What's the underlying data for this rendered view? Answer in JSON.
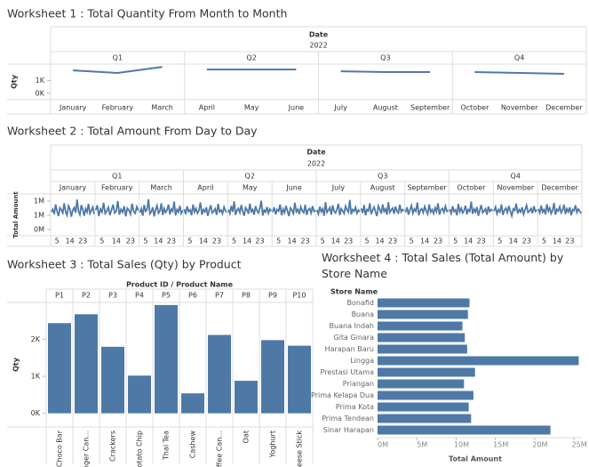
{
  "chart_data": [
    {
      "type": "line",
      "title": "Worksheet 1 : Total Quantity From Month to Month",
      "header": "Date",
      "year": "2022",
      "quarters": [
        "Q1",
        "Q2",
        "Q3",
        "Q4"
      ],
      "categories": [
        "January",
        "February",
        "March",
        "April",
        "May",
        "June",
        "July",
        "August",
        "September",
        "October",
        "November",
        "December"
      ],
      "values": [
        1800,
        1600,
        2070,
        1870,
        1870,
        1870,
        1730,
        1670,
        1670,
        1670,
        1600,
        1530
      ],
      "ylabel": "Qty",
      "ylim": [
        -500,
        2300
      ],
      "yticks": [
        {
          "value": 0,
          "label": "0K"
        },
        {
          "value": 1000,
          "label": "1K"
        }
      ],
      "color": "#4e79a7"
    },
    {
      "type": "timeseries",
      "title": "Worksheet 2 : Total Amount From Day to Day",
      "header": "Date",
      "year": "2022",
      "quarters": [
        "Q1",
        "Q2",
        "Q3",
        "Q4"
      ],
      "months": [
        {
          "name": "January",
          "values": [
            620000,
            710000,
            540000,
            880000,
            650000,
            470000,
            760000,
            690000,
            580000,
            920000,
            610000,
            500000,
            830000,
            720000,
            450000,
            680000,
            770000,
            590000,
            1050000,
            640000,
            520000,
            860000,
            700000,
            480000,
            730000,
            610000,
            900000,
            560000,
            670000,
            790000,
            530000
          ]
        },
        {
          "name": "February",
          "values": [
            680000,
            850000,
            470000,
            720000,
            610000,
            940000,
            560000,
            650000,
            780000,
            500000,
            690000,
            870000,
            580000,
            640000,
            1000000,
            520000,
            710000,
            600000,
            820000,
            460000,
            750000,
            680000,
            540000,
            910000,
            630000,
            570000,
            800000,
            660000
          ]
        },
        {
          "name": "March",
          "values": [
            590000,
            730000,
            480000,
            860000,
            640000,
            700000,
            1060000,
            550000,
            620000,
            780000,
            460000,
            690000,
            840000,
            570000,
            650000,
            920000,
            510000,
            740000,
            600000,
            680000,
            880000,
            530000,
            720000,
            640000,
            980000,
            490000,
            700000,
            610000,
            830000,
            560000,
            670000
          ]
        },
        {
          "name": "April",
          "values": [
            720000,
            540000,
            810000,
            630000,
            690000,
            500000,
            880000,
            610000,
            740000,
            570000,
            660000,
            950000,
            520000,
            700000,
            620000,
            780000,
            480000,
            690000,
            850000,
            580000,
            640000,
            730000,
            510000,
            900000,
            620000,
            680000,
            560000,
            790000,
            650000,
            600000
          ]
        },
        {
          "name": "May",
          "values": [
            700000,
            560000,
            830000,
            620000,
            990000,
            510000,
            680000,
            740000,
            590000,
            860000,
            640000,
            480000,
            770000,
            690000,
            550000,
            910000,
            630000,
            700000,
            520000,
            820000,
            660000,
            580000,
            750000,
            1010000,
            490000,
            680000,
            610000,
            790000,
            570000,
            720000,
            640000
          ]
        },
        {
          "name": "June",
          "values": [
            610000,
            780000,
            530000,
            700000,
            650000,
            880000,
            500000,
            720000,
            590000,
            830000,
            640000,
            470000,
            760000,
            680000,
            560000,
            940000,
            620000,
            710000,
            540000,
            800000,
            650000,
            590000,
            870000,
            510000,
            690000,
            740000,
            580000,
            820000,
            630000,
            670000
          ]
        },
        {
          "name": "July",
          "values": [
            690000,
            540000,
            800000,
            620000,
            720000,
            480000,
            960000,
            600000,
            680000,
            770000,
            520000,
            850000,
            640000,
            580000,
            710000,
            900000,
            500000,
            730000,
            650000,
            560000,
            820000,
            690000,
            610000,
            1040000,
            530000,
            700000,
            640000,
            780000,
            570000,
            680000,
            620000
          ]
        },
        {
          "name": "August",
          "values": [
            740000,
            580000,
            860000,
            500000,
            700000,
            650000,
            920000,
            540000,
            680000,
            790000,
            610000,
            470000,
            830000,
            700000,
            560000,
            880000,
            630000,
            720000,
            520000,
            960000,
            600000,
            690000,
            750000,
            550000,
            810000,
            640000,
            580000,
            870000,
            620000,
            700000,
            660000
          ]
        },
        {
          "name": "September",
          "values": [
            600000,
            780000,
            520000,
            690000,
            840000,
            570000,
            720000,
            640000,
            950000,
            500000,
            680000,
            730000,
            590000,
            810000,
            650000,
            540000,
            880000,
            610000,
            700000,
            560000,
            760000,
            630000,
            920000,
            520000,
            690000,
            740000,
            600000,
            820000,
            640000,
            680000
          ]
        },
        {
          "name": "October",
          "values": [
            710000,
            560000,
            820000,
            630000,
            690000,
            500000,
            900000,
            620000,
            750000,
            580000,
            670000,
            840000,
            530000,
            700000,
            640000,
            980000,
            550000,
            720000,
            610000,
            790000,
            480000,
            680000,
            860000,
            590000,
            650000,
            730000,
            520000,
            810000,
            630000,
            700000,
            660000
          ]
        },
        {
          "name": "November",
          "values": [
            640000,
            790000,
            550000,
            700000,
            620000,
            880000,
            510000,
            680000,
            750000,
            590000,
            830000,
            640000,
            480000,
            720000,
            670000,
            910000,
            560000,
            700000,
            610000,
            780000,
            530000,
            690000,
            850000,
            600000,
            650000,
            740000,
            570000,
            820000,
            630000,
            690000
          ]
        },
        {
          "name": "December",
          "values": [
            720000,
            580000,
            840000,
            610000,
            700000,
            530000,
            890000,
            640000,
            760000,
            560000,
            680000,
            930000,
            520000,
            710000,
            650000,
            800000,
            590000,
            690000,
            870000,
            540000,
            730000,
            620000,
            780000,
            500000,
            700000,
            660000,
            850000,
            600000,
            720000,
            640000,
            560000
          ]
        }
      ],
      "xticks": [
        5,
        14,
        23
      ],
      "ylabel": "Total Amount",
      "ylim": [
        -220000,
        1250000
      ],
      "yticks": [
        {
          "value": 0,
          "label": "0M"
        },
        {
          "value": 500000,
          "label": "1M"
        },
        {
          "value": 1000000,
          "label": "1M"
        }
      ],
      "color": "#4e79a7"
    },
    {
      "type": "bar",
      "title": "Worksheet 3 : Total Sales (Qty) by Product",
      "header": "Product ID / Product Name",
      "categories": [
        "P1",
        "P2",
        "P3",
        "P4",
        "P5",
        "P6",
        "P7",
        "P8",
        "P9",
        "P10"
      ],
      "names": [
        "Choco Bar",
        "Ginger Can...",
        "Crackers",
        "Potato Chip",
        "Thai Tea",
        "Cashew",
        "Coffee Can...",
        "Oat",
        "Yoghurt",
        "Cheese Stick"
      ],
      "values": [
        2440,
        2680,
        1800,
        1020,
        2930,
        540,
        2120,
        880,
        1980,
        1830
      ],
      "ylabel": "Qty",
      "ylim": [
        -370,
        3000
      ],
      "yticks": [
        {
          "value": 0,
          "label": "0K"
        },
        {
          "value": 1000,
          "label": "1K"
        },
        {
          "value": 2000,
          "label": "2K"
        }
      ],
      "color": "#4e79a7"
    },
    {
      "type": "barh",
      "title": "Worksheet 4 : Total Sales (Total Amount) by Store Name",
      "header": "Store Name",
      "categories": [
        "Bonafid",
        "Buana",
        "Buana Indah",
        "Gita Ginara",
        "Harapan Baru",
        "Lingga",
        "Prestasi Utama",
        "Priangan",
        "Prima Kelapa Dua",
        "Prima Kota",
        "Prima Tendean",
        "Sinar Harapan"
      ],
      "values": [
        11700000,
        11500000,
        10800000,
        11100000,
        11400000,
        25600000,
        12400000,
        11000000,
        12200000,
        11600000,
        11900000,
        22000000
      ],
      "xlabel": "Total Amount",
      "xlim": [
        0,
        26000000
      ],
      "xticks": [
        {
          "value": 0,
          "label": "0M"
        },
        {
          "value": 5000000,
          "label": "5M"
        },
        {
          "value": 10000000,
          "label": "10M"
        },
        {
          "value": 15000000,
          "label": "15M"
        },
        {
          "value": 20000000,
          "label": "20M"
        },
        {
          "value": 25000000,
          "label": "25M"
        }
      ],
      "color": "#4e79a7"
    }
  ]
}
